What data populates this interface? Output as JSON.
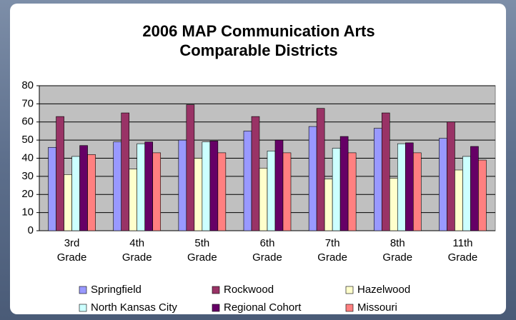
{
  "chart_data": {
    "type": "bar",
    "title": [
      "2006 MAP Communication Arts",
      "Comparable Districts"
    ],
    "categories": [
      "3rd Grade",
      "4th Grade",
      "5th Grade",
      "6th Grade",
      "7th Grade",
      "8th Grade",
      "11th Grade"
    ],
    "series": [
      {
        "name": "Springfield",
        "color": "#9999ff",
        "values": [
          46,
          49,
          50,
          55,
          57.5,
          56.5,
          51
        ]
      },
      {
        "name": "Rockwood",
        "color": "#993366",
        "values": [
          63,
          65,
          69.5,
          63,
          67.5,
          65,
          60
        ]
      },
      {
        "name": "Hazelwood",
        "color": "#ffffcc",
        "values": [
          31,
          34,
          40,
          34.5,
          28.5,
          29,
          33.5
        ]
      },
      {
        "name": "North Kansas City",
        "color": "#ccffff",
        "values": [
          41,
          48,
          49,
          44,
          45.5,
          48,
          41
        ]
      },
      {
        "name": "Regional Cohort",
        "color": "#660066",
        "values": [
          47,
          49,
          49.5,
          50,
          52,
          48.5,
          46.5
        ]
      },
      {
        "name": "Missouri",
        "color": "#ff8080",
        "values": [
          42,
          43,
          43,
          43,
          43,
          43,
          39
        ]
      }
    ],
    "ylim": [
      0,
      80
    ],
    "yticks": [
      0,
      10,
      20,
      30,
      40,
      50,
      60,
      70,
      80
    ],
    "grid": true,
    "legend": "bottom"
  }
}
